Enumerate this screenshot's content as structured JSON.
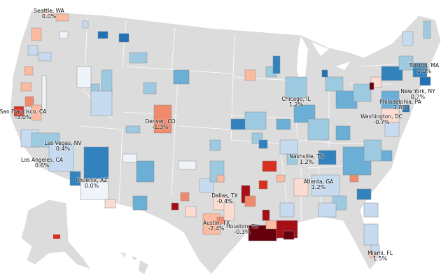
{
  "colors": {
    "land": "#dcdcdc",
    "border": "#ffffff",
    "scale_negative": [
      "#fcdcd0",
      "#fcbba1",
      "#f08a6c",
      "#d7301f",
      "#a50f15",
      "#67000d"
    ],
    "scale_positive": [
      "#eef4fa",
      "#c6dbef",
      "#9ecae1",
      "#6baed6",
      "#3182bd",
      "#2171b5"
    ]
  },
  "cities": [
    {
      "name": "Seattle, WA",
      "value": "0.0%"
    },
    {
      "name": "San Francisco, CA",
      "value": "-3.0%"
    },
    {
      "name": "Las Vegas, NV",
      "value": "0.4%"
    },
    {
      "name": "Los Angeles, CA",
      "value": "0.6%"
    },
    {
      "name": "Phoenix, AZ",
      "value": "0.0%"
    },
    {
      "name": "Denver, CO",
      "value": "-1.3%"
    },
    {
      "name": "Dallas, TX",
      "value": "-0.4%"
    },
    {
      "name": "Austin, TX",
      "value": "-2.4%"
    },
    {
      "name": "Houston, TX",
      "value": "-0.3%"
    },
    {
      "name": "Chicago, IL",
      "value": "1.2%"
    },
    {
      "name": "Nashville, TN",
      "value": "1.2%"
    },
    {
      "name": "Atlanta, GA",
      "value": "1.2%"
    },
    {
      "name": "Washington, DC",
      "value": "-0.7%"
    },
    {
      "name": "Philadelphia, PA",
      "value": "1.8%"
    },
    {
      "name": "New York, NY",
      "value": "0.7%"
    },
    {
      "name": "Boston, MA",
      "value": "0.9%"
    },
    {
      "name": "Miami, FL",
      "value": "1.5%"
    }
  ]
}
